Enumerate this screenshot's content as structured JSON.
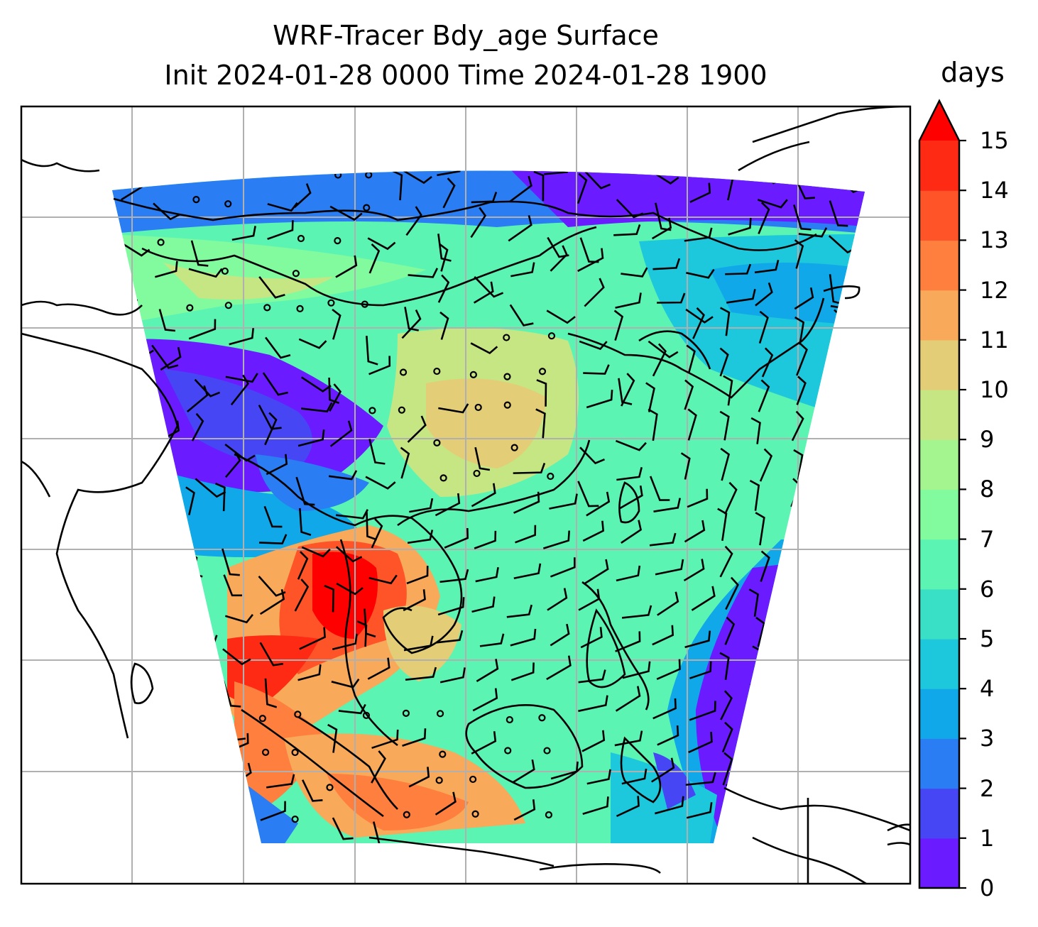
{
  "figure": {
    "title_line1": "WRF-Tracer Bdy_age Surface",
    "title_line2": "Init 2024-01-28 0000 Time 2024-01-28 1900"
  },
  "colorbar": {
    "label": "days",
    "min": 0,
    "max": 15,
    "extend": "max",
    "ticks": [
      "0",
      "1",
      "2",
      "3",
      "4",
      "5",
      "6",
      "7",
      "8",
      "9",
      "10",
      "11",
      "12",
      "13",
      "14",
      "15"
    ],
    "colors": [
      "#6a1bff",
      "#4646f5",
      "#2a7df2",
      "#10a8e8",
      "#1dc7dc",
      "#39e0c6",
      "#5cf4b2",
      "#82fb9e",
      "#a4f48f",
      "#c6e684",
      "#e3cd77",
      "#f8a95a",
      "#ff7f3e",
      "#ff5428",
      "#ff2a14"
    ],
    "extend_color": "#ff0000"
  },
  "map": {
    "colormap": "rainbow",
    "gridlines": true,
    "coastlines": true,
    "wind_barbs": true
  }
}
